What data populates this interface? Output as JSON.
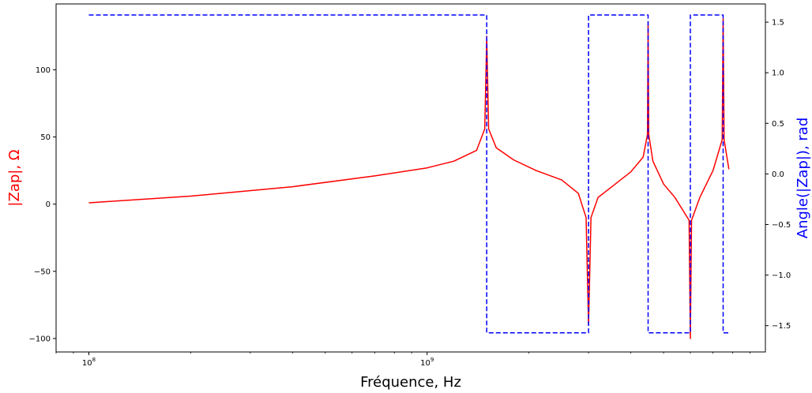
{
  "chart_data": {
    "type": "line",
    "xlabel": "Fréquence, Hz",
    "ylabel_left": "|Zap|, Ω",
    "ylabel_right": "Angle(|Zap|), rad",
    "xscale": "log",
    "xlim": [
      80000000,
      10000000000
    ],
    "ylim_left": [
      -110,
      149
    ],
    "ylim_right": [
      -1.76,
      1.68
    ],
    "x_ticks": [
      {
        "value": 100000000,
        "label": "10^8"
      },
      {
        "value": 1000000000,
        "label": "10^9"
      }
    ],
    "y_left_ticks": [
      {
        "value": -100,
        "label": "−100"
      },
      {
        "value": -50,
        "label": "−50"
      },
      {
        "value": 0,
        "label": "0"
      },
      {
        "value": 50,
        "label": "50"
      },
      {
        "value": 100,
        "label": "100"
      }
    ],
    "y_right_ticks": [
      {
        "value": -1.5,
        "label": "−1.5"
      },
      {
        "value": -1.0,
        "label": "−1.0"
      },
      {
        "value": -0.5,
        "label": "−0.5"
      },
      {
        "value": 0.0,
        "label": "0.0"
      },
      {
        "value": 0.5,
        "label": "0.5"
      },
      {
        "value": 1.0,
        "label": "1.0"
      },
      {
        "value": 1.5,
        "label": "1.5"
      }
    ],
    "series": [
      {
        "axis": "left",
        "color": "#ff0000",
        "style": "solid",
        "x": [
          100000000,
          200000000,
          400000000,
          700000000,
          1000000000,
          1200000000,
          1400000000,
          1480000000,
          1500000000,
          1520000000,
          1600000000,
          1800000000,
          2100000000,
          2500000000,
          2800000000,
          2950000000,
          3000000000,
          3050000000,
          3200000000,
          3600000000,
          4000000000,
          4350000000,
          4480000000,
          4500000000,
          4520000000,
          4650000000,
          5000000000,
          5400000000,
          5950000000,
          6000000000,
          6050000000,
          6400000000,
          7000000000,
          7450000000,
          7500000000,
          7550000000,
          7800000000
        ],
        "y": [
          1,
          6,
          13,
          21,
          27,
          32,
          40,
          56,
          125,
          56,
          42,
          33,
          25,
          18,
          8,
          -10,
          -90,
          -10,
          5,
          15,
          24,
          35,
          52,
          135,
          52,
          32,
          15,
          5,
          -12,
          -100,
          -12,
          5,
          25,
          48,
          138,
          48,
          26
        ]
      },
      {
        "axis": "right",
        "color": "#0000ff",
        "style": "dashed",
        "x": [
          100000000,
          1500000000,
          1500000000,
          3000000000,
          3000000000,
          4500000000,
          4500000000,
          6000000000,
          6000000000,
          7500000000,
          7500000000,
          7800000000
        ],
        "y": [
          1.5708,
          1.5708,
          -1.5708,
          -1.5708,
          1.5708,
          1.5708,
          -1.5708,
          -1.5708,
          1.5708,
          1.5708,
          -1.5708,
          -1.5708
        ]
      }
    ]
  }
}
